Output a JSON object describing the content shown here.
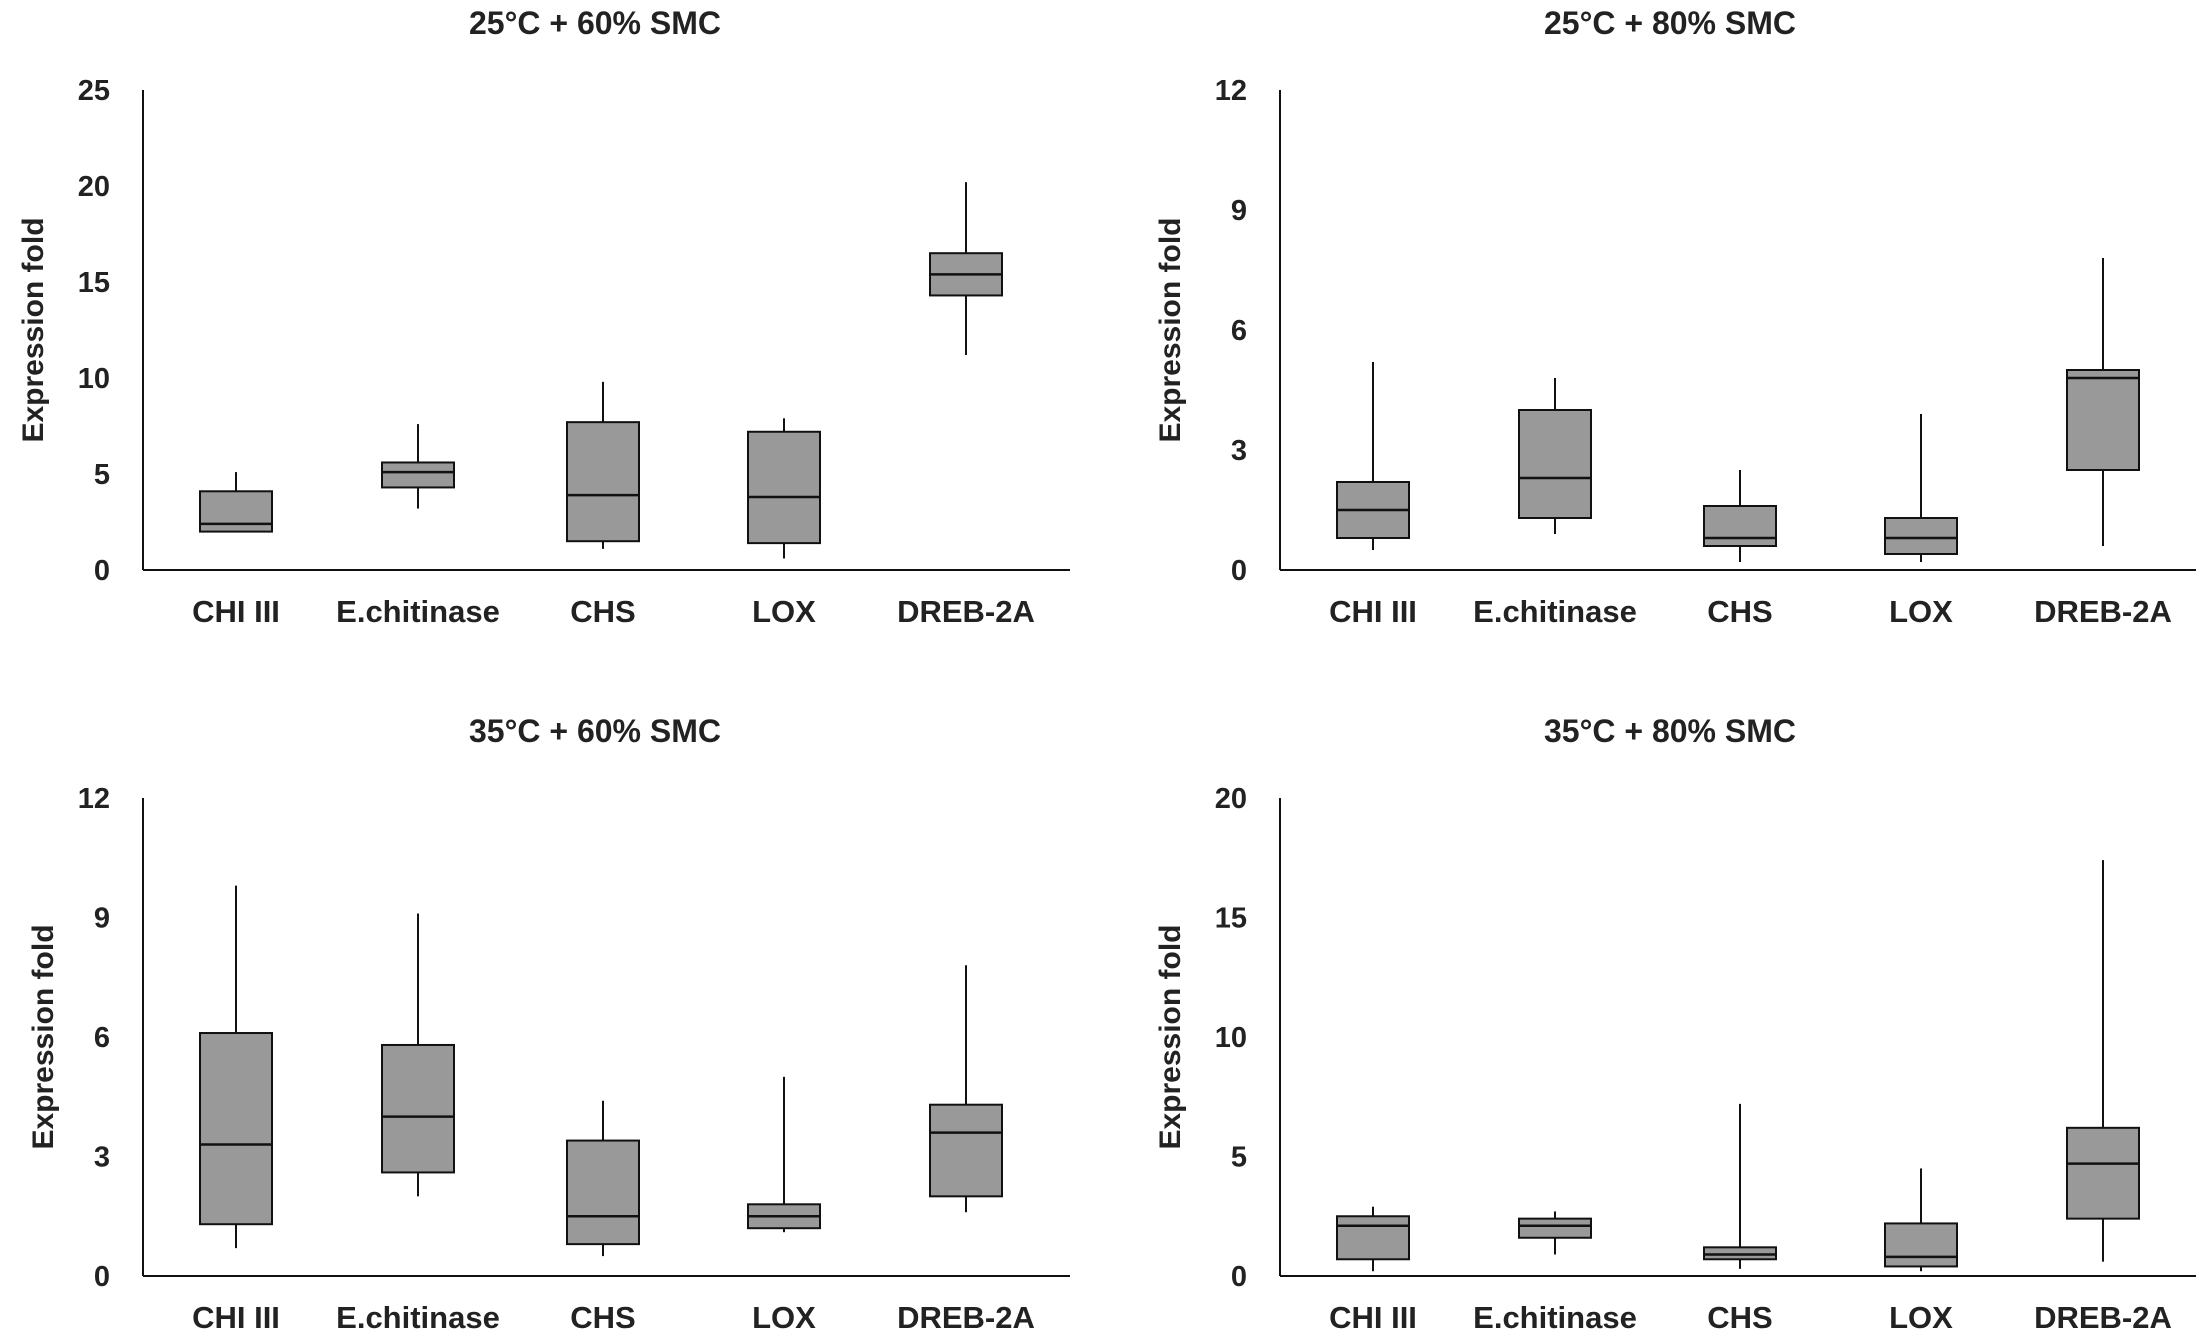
{
  "chart_data": [
    {
      "type": "box",
      "title": "25°C + 60% SMC",
      "ylabel": "Expression fold",
      "ylim": [
        0,
        25
      ],
      "yticks": [
        "0",
        "5",
        "10",
        "15",
        "20",
        "25"
      ],
      "categories": [
        "CHI III",
        "E.chitinase",
        "CHS",
        "LOX",
        "DREB-2A"
      ],
      "boxes": [
        {
          "min": 2.0,
          "q1": 2.0,
          "median": 2.4,
          "q3": 4.1,
          "max": 5.1
        },
        {
          "min": 3.2,
          "q1": 4.3,
          "median": 5.1,
          "q3": 5.6,
          "max": 7.6
        },
        {
          "min": 1.1,
          "q1": 1.5,
          "median": 3.9,
          "q3": 7.7,
          "max": 9.8
        },
        {
          "min": 0.6,
          "q1": 1.4,
          "median": 3.8,
          "q3": 7.2,
          "max": 7.9
        },
        {
          "min": 11.2,
          "q1": 14.3,
          "median": 15.4,
          "q3": 16.5,
          "max": 20.2
        }
      ]
    },
    {
      "type": "box",
      "title": "25°C + 80% SMC",
      "ylabel": "Expression fold",
      "ylim": [
        0,
        12
      ],
      "yticks": [
        "0",
        "3",
        "6",
        "9",
        "12"
      ],
      "categories": [
        "CHI III",
        "E.chitinase",
        "CHS",
        "LOX",
        "DREB-2A"
      ],
      "boxes": [
        {
          "min": 0.5,
          "q1": 0.8,
          "median": 1.5,
          "q3": 2.2,
          "max": 5.2
        },
        {
          "min": 0.9,
          "q1": 1.3,
          "median": 2.3,
          "q3": 4.0,
          "max": 4.8
        },
        {
          "min": 0.2,
          "q1": 0.6,
          "median": 0.8,
          "q3": 1.6,
          "max": 2.5
        },
        {
          "min": 0.2,
          "q1": 0.4,
          "median": 0.8,
          "q3": 1.3,
          "max": 3.9
        },
        {
          "min": 0.6,
          "q1": 2.5,
          "median": 4.8,
          "q3": 5.0,
          "max": 7.8
        }
      ]
    },
    {
      "type": "box",
      "title": "35°C + 60% SMC",
      "ylabel": "Expression fold",
      "ylim": [
        0,
        12
      ],
      "yticks": [
        "0",
        "3",
        "6",
        "9",
        "12"
      ],
      "categories": [
        "CHI III",
        "E.chitinase",
        "CHS",
        "LOX",
        "DREB-2A"
      ],
      "boxes": [
        {
          "min": 0.7,
          "q1": 1.3,
          "median": 3.3,
          "q3": 6.1,
          "max": 9.8
        },
        {
          "min": 2.0,
          "q1": 2.6,
          "median": 4.0,
          "q3": 5.8,
          "max": 9.1
        },
        {
          "min": 0.5,
          "q1": 0.8,
          "median": 1.5,
          "q3": 3.4,
          "max": 4.4
        },
        {
          "min": 1.1,
          "q1": 1.2,
          "median": 1.5,
          "q3": 1.8,
          "max": 5.0
        },
        {
          "min": 1.6,
          "q1": 2.0,
          "median": 3.6,
          "q3": 4.3,
          "max": 7.8
        }
      ]
    },
    {
      "type": "box",
      "title": "35°C + 80% SMC",
      "ylabel": "Expression fold",
      "ylim": [
        0,
        20
      ],
      "yticks": [
        "0",
        "5",
        "10",
        "15",
        "20"
      ],
      "categories": [
        "CHI III",
        "E.chitinase",
        "CHS",
        "LOX",
        "DREB-2A"
      ],
      "boxes": [
        {
          "min": 0.2,
          "q1": 0.7,
          "median": 2.1,
          "q3": 2.5,
          "max": 2.9
        },
        {
          "min": 0.9,
          "q1": 1.6,
          "median": 2.1,
          "q3": 2.4,
          "max": 2.7
        },
        {
          "min": 0.3,
          "q1": 0.7,
          "median": 0.9,
          "q3": 1.2,
          "max": 7.2
        },
        {
          "min": 0.2,
          "q1": 0.4,
          "median": 0.8,
          "q3": 2.2,
          "max": 4.5
        },
        {
          "min": 0.6,
          "q1": 2.4,
          "median": 4.7,
          "q3": 6.2,
          "max": 17.4
        }
      ]
    }
  ],
  "colors": {
    "box_fill": "#999999",
    "line": "#111111",
    "text": "#222222"
  }
}
